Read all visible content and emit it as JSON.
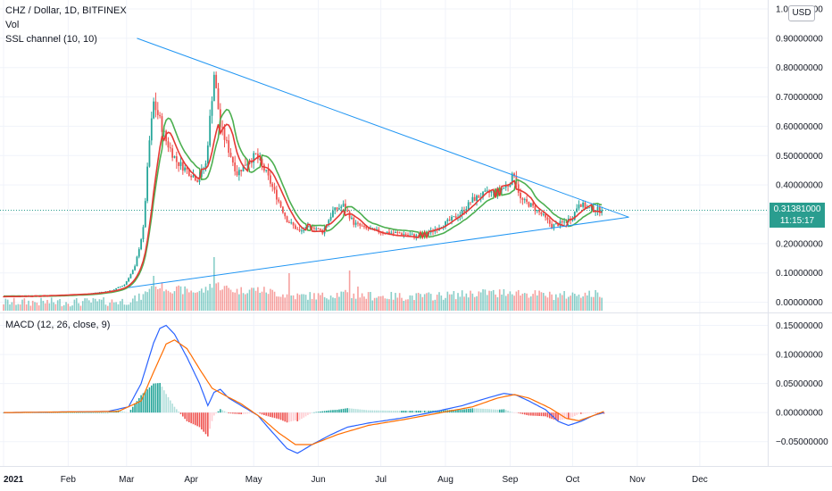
{
  "header": {
    "title": "CHZ / Dollar, 1D, BITFINEX",
    "vol_label": "Vol",
    "ssl_label": "SSL channel (10, 10)",
    "macd_label": "MACD (12, 26, close, 9)",
    "currency_button": "USD"
  },
  "last_price": {
    "value": "0.31381000",
    "countdown": "11:15:17"
  },
  "colors": {
    "up": "#26a69a",
    "down": "#ef5350",
    "ssl_up": "#4caf50",
    "ssl_down": "#e53935",
    "trendline": "#2196f3",
    "macd_line": "#2962ff",
    "signal_line": "#ff6d00",
    "price_badge": "#2a9d8f"
  },
  "chart_data": [
    {
      "type": "candlestick",
      "panel": "price",
      "ylim": [
        -0.05,
        1.0
      ],
      "yticks": [
        "1.00000000",
        "0.90000000",
        "0.80000000",
        "0.70000000",
        "0.60000000",
        "0.50000000",
        "0.40000000",
        "0.30000000",
        "0.20000000",
        "0.10000000",
        "0.00000000"
      ],
      "ytick_values": [
        1.0,
        0.9,
        0.8,
        0.7,
        0.6,
        0.5,
        0.4,
        0.3,
        0.2,
        0.1,
        0.0
      ],
      "x_labels": [
        "2021",
        "Feb",
        "Mar",
        "Apr",
        "May",
        "Jun",
        "Jul",
        "Aug",
        "Sep",
        "Oct",
        "Nov",
        "Dec"
      ],
      "x_label_days": [
        0,
        31,
        59,
        90,
        120,
        151,
        181,
        212,
        243,
        273,
        304,
        334
      ],
      "close_keypoints": [
        [
          0,
          0.02
        ],
        [
          20,
          0.022
        ],
        [
          40,
          0.028
        ],
        [
          52,
          0.04
        ],
        [
          58,
          0.06
        ],
        [
          63,
          0.12
        ],
        [
          67,
          0.25
        ],
        [
          70,
          0.55
        ],
        [
          72,
          0.68
        ],
        [
          75,
          0.62
        ],
        [
          78,
          0.55
        ],
        [
          83,
          0.48
        ],
        [
          88,
          0.45
        ],
        [
          93,
          0.42
        ],
        [
          97,
          0.47
        ],
        [
          101,
          0.78
        ],
        [
          104,
          0.6
        ],
        [
          108,
          0.52
        ],
        [
          112,
          0.44
        ],
        [
          117,
          0.48
        ],
        [
          121,
          0.5
        ],
        [
          126,
          0.44
        ],
        [
          131,
          0.36
        ],
        [
          136,
          0.28
        ],
        [
          142,
          0.24
        ],
        [
          148,
          0.26
        ],
        [
          153,
          0.24
        ],
        [
          158,
          0.31
        ],
        [
          163,
          0.33
        ],
        [
          168,
          0.27
        ],
        [
          174,
          0.25
        ],
        [
          181,
          0.24
        ],
        [
          190,
          0.235
        ],
        [
          198,
          0.225
        ],
        [
          205,
          0.24
        ],
        [
          212,
          0.27
        ],
        [
          219,
          0.3
        ],
        [
          225,
          0.35
        ],
        [
          231,
          0.37
        ],
        [
          237,
          0.38
        ],
        [
          242,
          0.4
        ],
        [
          245,
          0.44
        ],
        [
          248,
          0.35
        ],
        [
          253,
          0.33
        ],
        [
          258,
          0.3
        ],
        [
          263,
          0.26
        ],
        [
          268,
          0.27
        ],
        [
          273,
          0.29
        ],
        [
          276,
          0.34
        ],
        [
          280,
          0.32
        ],
        [
          287,
          0.3138
        ]
      ],
      "volume_spikes": [
        [
          72,
          0.65
        ],
        [
          73,
          0.45
        ],
        [
          101,
          1.0
        ],
        [
          137,
          0.7
        ],
        [
          166,
          0.75
        ],
        [
          170,
          0.45
        ],
        [
          176,
          0.35
        ],
        [
          237,
          0.25
        ],
        [
          245,
          0.28
        ]
      ],
      "upper_trendline": [
        [
          64,
          0.9
        ],
        [
          300,
          0.29
        ]
      ],
      "lower_trendline": [
        [
          60,
          0.05
        ],
        [
          300,
          0.29
        ]
      ],
      "last_close": 0.31381
    },
    {
      "type": "line",
      "panel": "macd",
      "ylim": [
        -0.075,
        0.16
      ],
      "yticks": [
        "0.15000000",
        "0.10000000",
        "0.05000000",
        "0.00000000",
        "−0.05000000"
      ],
      "ytick_values": [
        0.15,
        0.1,
        0.05,
        0.0,
        -0.05
      ],
      "series": [
        {
          "name": "MACD",
          "points": [
            [
              0,
              0.0
            ],
            [
              50,
              0.002
            ],
            [
              60,
              0.01
            ],
            [
              66,
              0.05
            ],
            [
              72,
              0.12
            ],
            [
              75,
              0.145
            ],
            [
              78,
              0.15
            ],
            [
              82,
              0.135
            ],
            [
              88,
              0.095
            ],
            [
              94,
              0.05
            ],
            [
              98,
              0.012
            ],
            [
              101,
              0.035
            ],
            [
              104,
              0.04
            ],
            [
              108,
              0.025
            ],
            [
              115,
              0.01
            ],
            [
              122,
              -0.005
            ],
            [
              128,
              -0.03
            ],
            [
              136,
              -0.062
            ],
            [
              141,
              -0.07
            ],
            [
              148,
              -0.055
            ],
            [
              157,
              -0.038
            ],
            [
              165,
              -0.025
            ],
            [
              175,
              -0.018
            ],
            [
              190,
              -0.01
            ],
            [
              205,
              0.0
            ],
            [
              220,
              0.012
            ],
            [
              232,
              0.025
            ],
            [
              240,
              0.033
            ],
            [
              246,
              0.03
            ],
            [
              252,
              0.02
            ],
            [
              260,
              0.005
            ],
            [
              266,
              -0.015
            ],
            [
              271,
              -0.022
            ],
            [
              277,
              -0.015
            ],
            [
              283,
              -0.005
            ],
            [
              288,
              0.0
            ]
          ]
        },
        {
          "name": "Signal",
          "points": [
            [
              0,
              0.0
            ],
            [
              55,
              0.002
            ],
            [
              66,
              0.02
            ],
            [
              72,
              0.07
            ],
            [
              78,
              0.118
            ],
            [
              82,
              0.125
            ],
            [
              88,
              0.11
            ],
            [
              94,
              0.075
            ],
            [
              100,
              0.042
            ],
            [
              106,
              0.03
            ],
            [
              114,
              0.015
            ],
            [
              124,
              -0.01
            ],
            [
              132,
              -0.035
            ],
            [
              140,
              -0.055
            ],
            [
              148,
              -0.055
            ],
            [
              160,
              -0.038
            ],
            [
              175,
              -0.022
            ],
            [
              192,
              -0.012
            ],
            [
              210,
              0.0
            ],
            [
              225,
              0.01
            ],
            [
              237,
              0.025
            ],
            [
              245,
              0.031
            ],
            [
              252,
              0.025
            ],
            [
              262,
              0.008
            ],
            [
              270,
              -0.01
            ],
            [
              276,
              -0.014
            ],
            [
              283,
              -0.005
            ],
            [
              288,
              0.002
            ]
          ]
        }
      ]
    }
  ]
}
